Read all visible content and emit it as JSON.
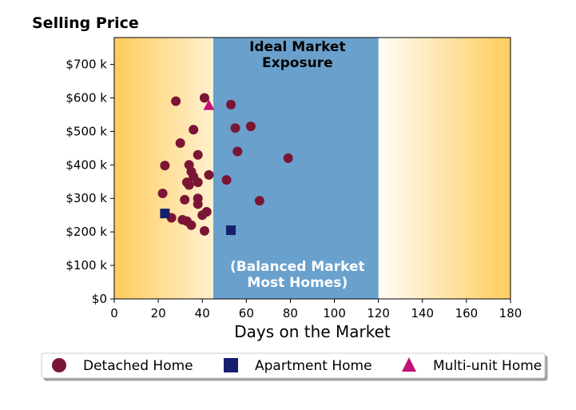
{
  "chart_data": {
    "type": "scatter",
    "title": "Selling Price",
    "xlabel": "Days on the Market",
    "ylabel": "",
    "xlim": [
      0,
      180
    ],
    "ylim": [
      0,
      780000
    ],
    "x_ticks": [
      0,
      20,
      40,
      60,
      80,
      100,
      120,
      140,
      160,
      180
    ],
    "y_ticks": [
      0,
      100000,
      200000,
      300000,
      400000,
      500000,
      600000,
      700000
    ],
    "y_tick_labels": [
      "$0",
      "$100 k",
      "$200 k",
      "$300 k",
      "$400 k",
      "$500 k",
      "$600 k",
      "$700 k"
    ],
    "grid": false,
    "legend_position": "bottom",
    "bands": [
      {
        "from": 45,
        "to": 120,
        "color": "#6aa0cc",
        "top_label": [
          "Ideal Market",
          "Exposure"
        ],
        "bottom_label": [
          "(Balanced Market",
          "Most Homes)"
        ]
      }
    ],
    "background_gradient": {
      "edge_color": "#ffcc5c",
      "center_color": "#ffffff"
    },
    "series": [
      {
        "name": "Detached Home",
        "marker": "circle",
        "color": "#7b1535",
        "points": [
          [
            28,
            590000
          ],
          [
            41,
            600000
          ],
          [
            53,
            580000
          ],
          [
            36,
            505000
          ],
          [
            55,
            510000
          ],
          [
            62,
            515000
          ],
          [
            30,
            465000
          ],
          [
            56,
            440000
          ],
          [
            38,
            430000
          ],
          [
            79,
            420000
          ],
          [
            23,
            398000
          ],
          [
            34,
            400000
          ],
          [
            35,
            380000
          ],
          [
            36,
            365000
          ],
          [
            43,
            370000
          ],
          [
            33,
            348000
          ],
          [
            38,
            348000
          ],
          [
            34,
            340000
          ],
          [
            51,
            355000
          ],
          [
            22,
            315000
          ],
          [
            32,
            296000
          ],
          [
            38,
            300000
          ],
          [
            66,
            293000
          ],
          [
            38,
            283000
          ],
          [
            42,
            260000
          ],
          [
            40,
            250000
          ],
          [
            26,
            242000
          ],
          [
            31,
            236000
          ],
          [
            33,
            232000
          ],
          [
            35,
            220000
          ],
          [
            41,
            203000
          ]
        ]
      },
      {
        "name": "Apartment Home",
        "marker": "square",
        "color": "#14206e",
        "points": [
          [
            23,
            255000
          ],
          [
            53,
            205000
          ]
        ]
      },
      {
        "name": "Multi-unit Home",
        "marker": "triangle",
        "color": "#c0127a",
        "points": [
          [
            43,
            578000
          ]
        ]
      }
    ]
  }
}
